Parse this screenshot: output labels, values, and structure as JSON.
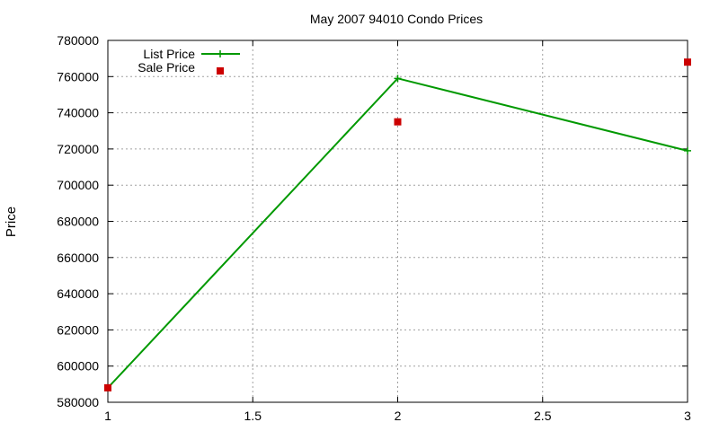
{
  "chart_data": {
    "type": "line",
    "title": "May 2007 94010 Condo Prices",
    "xlabel": "",
    "ylabel": "Price",
    "xlim": [
      1,
      3
    ],
    "ylim": [
      580000,
      780000
    ],
    "xticks": [
      "1",
      "1.5",
      "2",
      "2.5",
      "3"
    ],
    "yticks": [
      "580000",
      "600000",
      "620000",
      "640000",
      "660000",
      "680000",
      "700000",
      "720000",
      "740000",
      "760000",
      "780000"
    ],
    "grid": true,
    "legend_position": "top-left",
    "series": [
      {
        "name": "List Price",
        "style": "linespoints",
        "color": "#009900",
        "x": [
          1,
          2,
          3
        ],
        "y": [
          588000,
          759000,
          719000
        ]
      },
      {
        "name": "Sale Price",
        "style": "points",
        "color": "#cc0000",
        "x": [
          1,
          2,
          3
        ],
        "y": [
          588000,
          735000,
          768000
        ]
      }
    ]
  }
}
